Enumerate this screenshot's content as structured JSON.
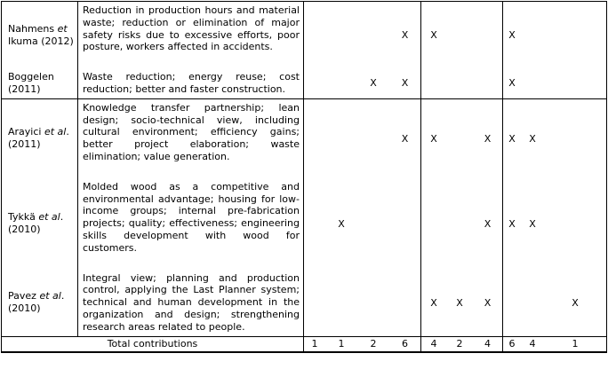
{
  "colors": {
    "border": "#000000",
    "text": "#000000",
    "background": "#ffffff"
  },
  "mark_glyph": "X",
  "table": {
    "column_groups": [
      4,
      3,
      3
    ],
    "sections": [
      {
        "rows": [
          {
            "author_segments": [
              {
                "text": "Nahmens ",
                "italic": false
              },
              {
                "text": "et",
                "italic": true
              },
              {
                "text": " Ikuma (2012)",
                "italic": false
              }
            ],
            "description": "Reduction in production hours and material waste; reduction or elimination of major safety risks due to excessive efforts, poor posture, workers affected in accidents.",
            "marks": [
              0,
              0,
              0,
              1,
              1,
              0,
              0,
              1,
              0,
              0
            ]
          },
          {
            "author_segments": [
              {
                "text": "Boggelen (2011)",
                "italic": false
              }
            ],
            "description": "Waste reduction; energy reuse; cost reduction; better and faster construction.",
            "marks": [
              0,
              0,
              1,
              1,
              0,
              0,
              0,
              1,
              0,
              0
            ]
          }
        ]
      },
      {
        "rows": [
          {
            "author_segments": [
              {
                "text": "Arayici ",
                "italic": false
              },
              {
                "text": "et al",
                "italic": true
              },
              {
                "text": ". (2011)",
                "italic": false
              }
            ],
            "description": "Knowledge transfer partnership; lean design; socio-technical view, including cultural environment; efficiency gains; better project elaboration; waste elimination; value generation.",
            "marks": [
              0,
              0,
              0,
              1,
              1,
              0,
              1,
              1,
              1,
              0
            ]
          },
          {
            "author_segments": [
              {
                "text": "Tykkä ",
                "italic": false
              },
              {
                "text": "et al",
                "italic": true
              },
              {
                "text": ". (2010)",
                "italic": false
              }
            ],
            "description": "Molded wood as a competitive and environmental advantage; housing for low-income groups; internal pre-fabrication projects; quality; effectiveness; engineering skills development with wood for customers.",
            "marks": [
              0,
              1,
              0,
              0,
              0,
              0,
              1,
              1,
              1,
              0
            ]
          },
          {
            "author_segments": [
              {
                "text": "Pavez ",
                "italic": false
              },
              {
                "text": "et al",
                "italic": true
              },
              {
                "text": ". (2010)",
                "italic": false
              }
            ],
            "description": "Integral view; planning and production control, applying the Last Planner system; technical and human development in the organization and design; strengthening research areas related to people.",
            "marks": [
              0,
              0,
              0,
              0,
              1,
              1,
              1,
              0,
              0,
              1
            ]
          }
        ]
      }
    ],
    "totals": {
      "label": "Total contributions",
      "values": [
        "1",
        "1",
        "2",
        "6",
        "4",
        "2",
        "4",
        "6",
        "4",
        "1"
      ]
    }
  }
}
